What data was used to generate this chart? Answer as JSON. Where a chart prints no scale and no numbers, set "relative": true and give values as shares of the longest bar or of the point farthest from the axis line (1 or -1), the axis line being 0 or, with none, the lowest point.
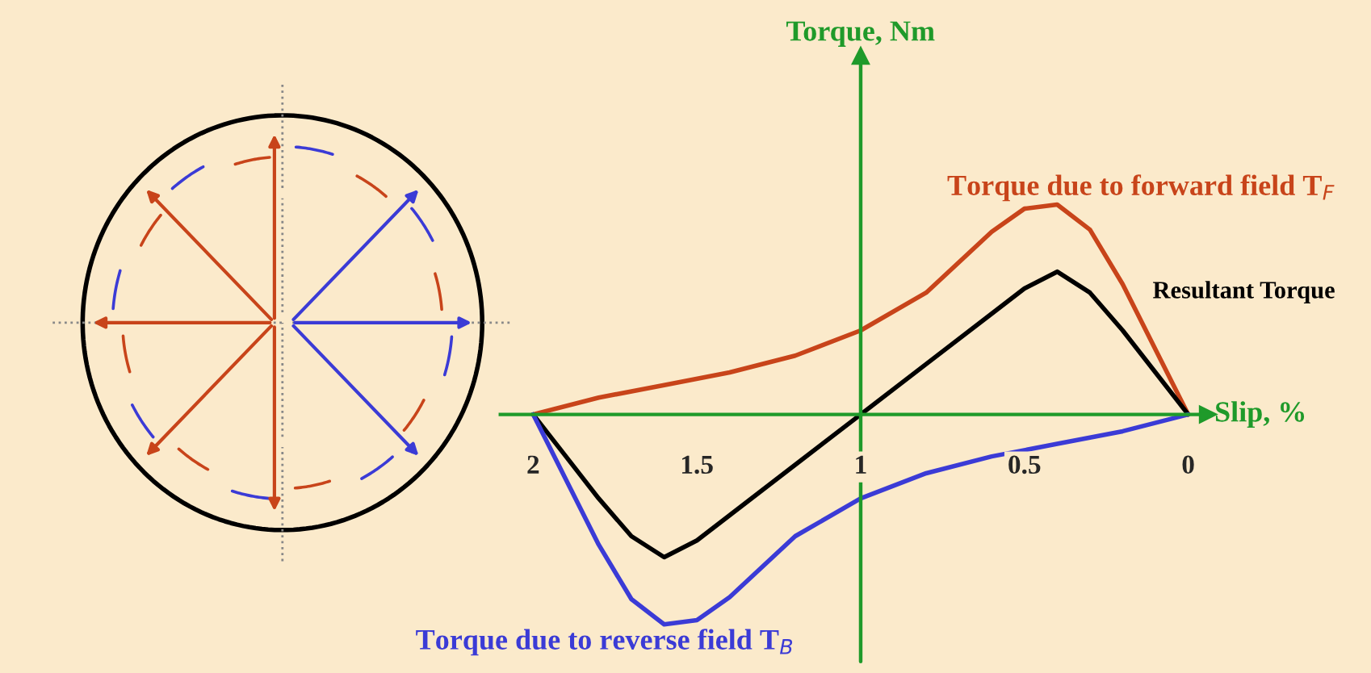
{
  "chart_data": {
    "type": "line",
    "relative": true,
    "xlabel": "Slip, %",
    "annotations": [
      "Torque, Nm"
    ],
    "ref_lines": [
      {
        "axis": "x",
        "value": 1,
        "color": "#1f9a2a"
      }
    ],
    "xlim": [
      2.1,
      -0.06
    ],
    "xticks": [
      2,
      1.5,
      1,
      0.5,
      0
    ],
    "grid": false,
    "legend": false,
    "marker": "none",
    "line_style": "solid",
    "series": [
      {
        "name": "Torque due to forward field T$_{F}$",
        "color": "#c8441a",
        "x": [
          2,
          1.8,
          1.6,
          1.4,
          1.2,
          1.0,
          0.8,
          0.6,
          0.5,
          0.4,
          0.3,
          0.2,
          0.1,
          0
        ],
        "values": [
          0,
          0.08,
          0.14,
          0.2,
          0.28,
          0.4,
          0.58,
          0.87,
          0.98,
          1,
          0.88,
          0.62,
          0.31,
          0
        ]
      },
      {
        "name": "Resultant Torque",
        "color": "#000000",
        "x": [
          2,
          1.9,
          1.8,
          1.7,
          1.6,
          1.5,
          1.4,
          1.2,
          1.0,
          0.8,
          0.6,
          0.5,
          0.4,
          0.3,
          0.2,
          0.1,
          0
        ],
        "values": [
          0,
          -0.2,
          -0.4,
          -0.58,
          -0.68,
          -0.6,
          -0.48,
          -0.24,
          0,
          0.24,
          0.48,
          0.6,
          0.68,
          0.58,
          0.4,
          0.2,
          0
        ]
      },
      {
        "name": "Torque due to reverse field T$_{B}$",
        "color": "#3b3bd6",
        "x": [
          2,
          1.9,
          1.8,
          1.7,
          1.6,
          1.5,
          1.4,
          1.2,
          1.0,
          0.8,
          0.6,
          0.4,
          0.2,
          0
        ],
        "values": [
          0,
          -0.31,
          -0.62,
          -0.88,
          -1,
          -0.98,
          -0.87,
          -0.58,
          -0.4,
          -0.28,
          -0.2,
          -0.14,
          -0.08,
          0
        ]
      }
    ]
  }
}
